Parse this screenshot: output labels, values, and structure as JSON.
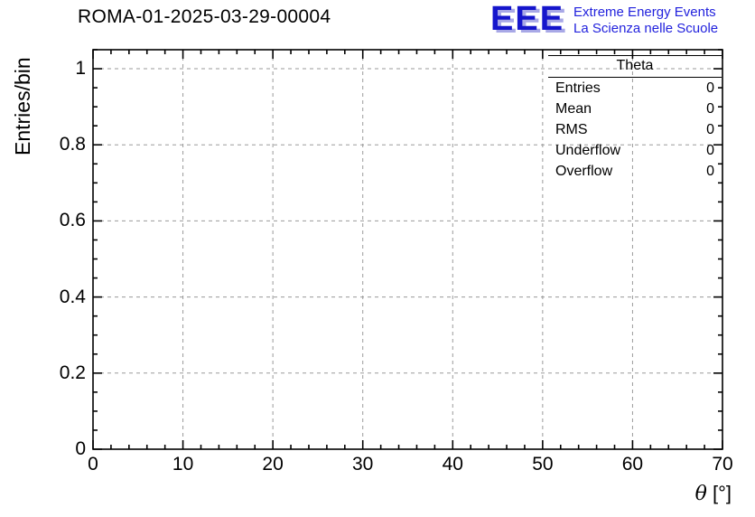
{
  "title": "ROMA-01-2025-03-29-00004",
  "logo": {
    "eee": "EEE",
    "line1": "Extreme Energy Events",
    "line2": "La Scienza nelle Scuole",
    "color": "#2222dd"
  },
  "axes": {
    "ylabel": "Entries/bin",
    "theta_symbol": "θ",
    "degree_unit": "[°]"
  },
  "stats": {
    "header": "Theta",
    "rows": [
      {
        "label": "Entries",
        "value": "0"
      },
      {
        "label": "Mean",
        "value": "0"
      },
      {
        "label": "RMS",
        "value": "0"
      },
      {
        "label": "Underflow",
        "value": "0"
      },
      {
        "label": "Overflow",
        "value": "0"
      }
    ]
  },
  "chart_data": {
    "type": "bar",
    "title": "ROMA-01-2025-03-29-00004",
    "xlabel": "θ [°]",
    "ylabel": "Entries/bin",
    "xlim": [
      0,
      70
    ],
    "ylim": [
      0,
      1.05
    ],
    "x_ticks": [
      0,
      10,
      20,
      30,
      40,
      50,
      60,
      70
    ],
    "x_tick_labels": [
      "0",
      "10",
      "20",
      "30",
      "40",
      "50",
      "60",
      "70"
    ],
    "y_ticks": [
      0,
      0.2,
      0.4,
      0.6,
      0.8,
      1
    ],
    "y_tick_labels": [
      "0",
      "0.2",
      "0.4",
      "0.6",
      "0.8",
      "1"
    ],
    "x_minor_step": 2,
    "y_minor_step": 0.05,
    "grid": "dashed-major",
    "legend": "none",
    "series": [
      {
        "name": "Theta",
        "entries": 0,
        "mean": 0,
        "rms": 0,
        "underflow": 0,
        "overflow": 0,
        "values": []
      }
    ]
  }
}
